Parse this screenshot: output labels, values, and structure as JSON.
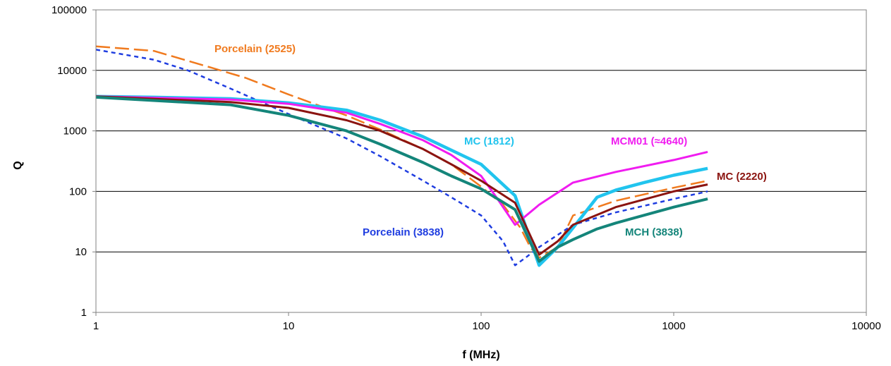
{
  "chart_data": {
    "type": "line",
    "title": "",
    "xlabel": "f (MHz)",
    "ylabel": "Q",
    "xscale": "log",
    "yscale": "log",
    "xlim": [
      1,
      10000
    ],
    "ylim": [
      1,
      100000
    ],
    "x_ticks": [
      "1",
      "10",
      "100",
      "1000",
      "10000"
    ],
    "y_ticks": [
      "1",
      "10",
      "100",
      "1000",
      "10000",
      "100000"
    ],
    "grid": "horizontal",
    "legend": "none (inline labels)",
    "series": [
      {
        "name": "Porcelain (2525)",
        "color": "#f07a1e",
        "dash": "long-dash",
        "points": [
          [
            1,
            25000
          ],
          [
            2,
            21000
          ],
          [
            4,
            11000
          ],
          [
            6,
            7500
          ],
          [
            10,
            4000
          ],
          [
            15,
            2500
          ],
          [
            20,
            1800
          ],
          [
            30,
            1050
          ],
          [
            50,
            500
          ],
          [
            70,
            280
          ],
          [
            100,
            120
          ],
          [
            130,
            60
          ],
          [
            160,
            25
          ],
          [
            180,
            12
          ],
          [
            200,
            8
          ],
          [
            250,
            12
          ],
          [
            300,
            40
          ],
          [
            500,
            70
          ],
          [
            1000,
            115
          ],
          [
            1500,
            150
          ]
        ]
      },
      {
        "name": "Porcelain (3838)",
        "color": "#1f3de0",
        "dash": "short-dash",
        "points": [
          [
            1,
            22000
          ],
          [
            2,
            15000
          ],
          [
            3,
            10000
          ],
          [
            5,
            5000
          ],
          [
            10,
            1900
          ],
          [
            15,
            1100
          ],
          [
            20,
            750
          ],
          [
            30,
            380
          ],
          [
            50,
            150
          ],
          [
            70,
            80
          ],
          [
            100,
            40
          ],
          [
            130,
            15
          ],
          [
            150,
            6
          ],
          [
            170,
            8
          ],
          [
            200,
            12
          ],
          [
            300,
            28
          ],
          [
            500,
            45
          ],
          [
            1000,
            75
          ],
          [
            1500,
            100
          ]
        ]
      },
      {
        "name": "MC (1812)",
        "color": "#21c4ee",
        "dash": "solid",
        "points": [
          [
            1,
            3700
          ],
          [
            2,
            3600
          ],
          [
            5,
            3400
          ],
          [
            10,
            2900
          ],
          [
            20,
            2200
          ],
          [
            30,
            1500
          ],
          [
            50,
            800
          ],
          [
            70,
            480
          ],
          [
            100,
            280
          ],
          [
            150,
            85
          ],
          [
            200,
            6
          ],
          [
            250,
            12
          ],
          [
            300,
            25
          ],
          [
            400,
            80
          ],
          [
            500,
            105
          ],
          [
            700,
            140
          ],
          [
            1000,
            185
          ],
          [
            1500,
            240
          ]
        ]
      },
      {
        "name": "MCM01 (≈4640)",
        "color": "#f01cf0",
        "dash": "solid",
        "points": [
          [
            1,
            3700
          ],
          [
            5,
            3300
          ],
          [
            10,
            2800
          ],
          [
            20,
            2000
          ],
          [
            30,
            1300
          ],
          [
            50,
            700
          ],
          [
            70,
            400
          ],
          [
            100,
            180
          ],
          [
            120,
            80
          ],
          [
            150,
            28
          ],
          [
            200,
            60
          ],
          [
            300,
            140
          ],
          [
            500,
            210
          ],
          [
            1000,
            330
          ],
          [
            1500,
            450
          ]
        ]
      },
      {
        "name": "MC (2220)",
        "color": "#8b1410",
        "dash": "solid",
        "points": [
          [
            1,
            3700
          ],
          [
            5,
            3000
          ],
          [
            10,
            2400
          ],
          [
            20,
            1500
          ],
          [
            30,
            1000
          ],
          [
            50,
            500
          ],
          [
            70,
            280
          ],
          [
            100,
            150
          ],
          [
            150,
            65
          ],
          [
            200,
            9
          ],
          [
            250,
            15
          ],
          [
            300,
            28
          ],
          [
            500,
            55
          ],
          [
            1000,
            100
          ],
          [
            1500,
            130
          ]
        ]
      },
      {
        "name": "MCH (3838)",
        "color": "#14857a",
        "dash": "solid",
        "points": [
          [
            1,
            3600
          ],
          [
            5,
            2700
          ],
          [
            10,
            1800
          ],
          [
            20,
            1000
          ],
          [
            30,
            600
          ],
          [
            50,
            300
          ],
          [
            70,
            180
          ],
          [
            100,
            110
          ],
          [
            150,
            50
          ],
          [
            200,
            7
          ],
          [
            250,
            12
          ],
          [
            300,
            16
          ],
          [
            400,
            24
          ],
          [
            500,
            30
          ],
          [
            1000,
            55
          ],
          [
            1500,
            75
          ]
        ]
      }
    ],
    "labels": [
      {
        "text": "Porcelain (2525)",
        "color": "#f07a1e"
      },
      {
        "text": "MC (1812)",
        "color": "#21c4ee"
      },
      {
        "text": "MCM01 (≈4640)",
        "color": "#f01cf0"
      },
      {
        "text": "MC (2220)",
        "color": "#8b1410"
      },
      {
        "text": "Porcelain (3838)",
        "color": "#1f3de0"
      },
      {
        "text": "MCH (3838)",
        "color": "#14857a"
      }
    ]
  }
}
